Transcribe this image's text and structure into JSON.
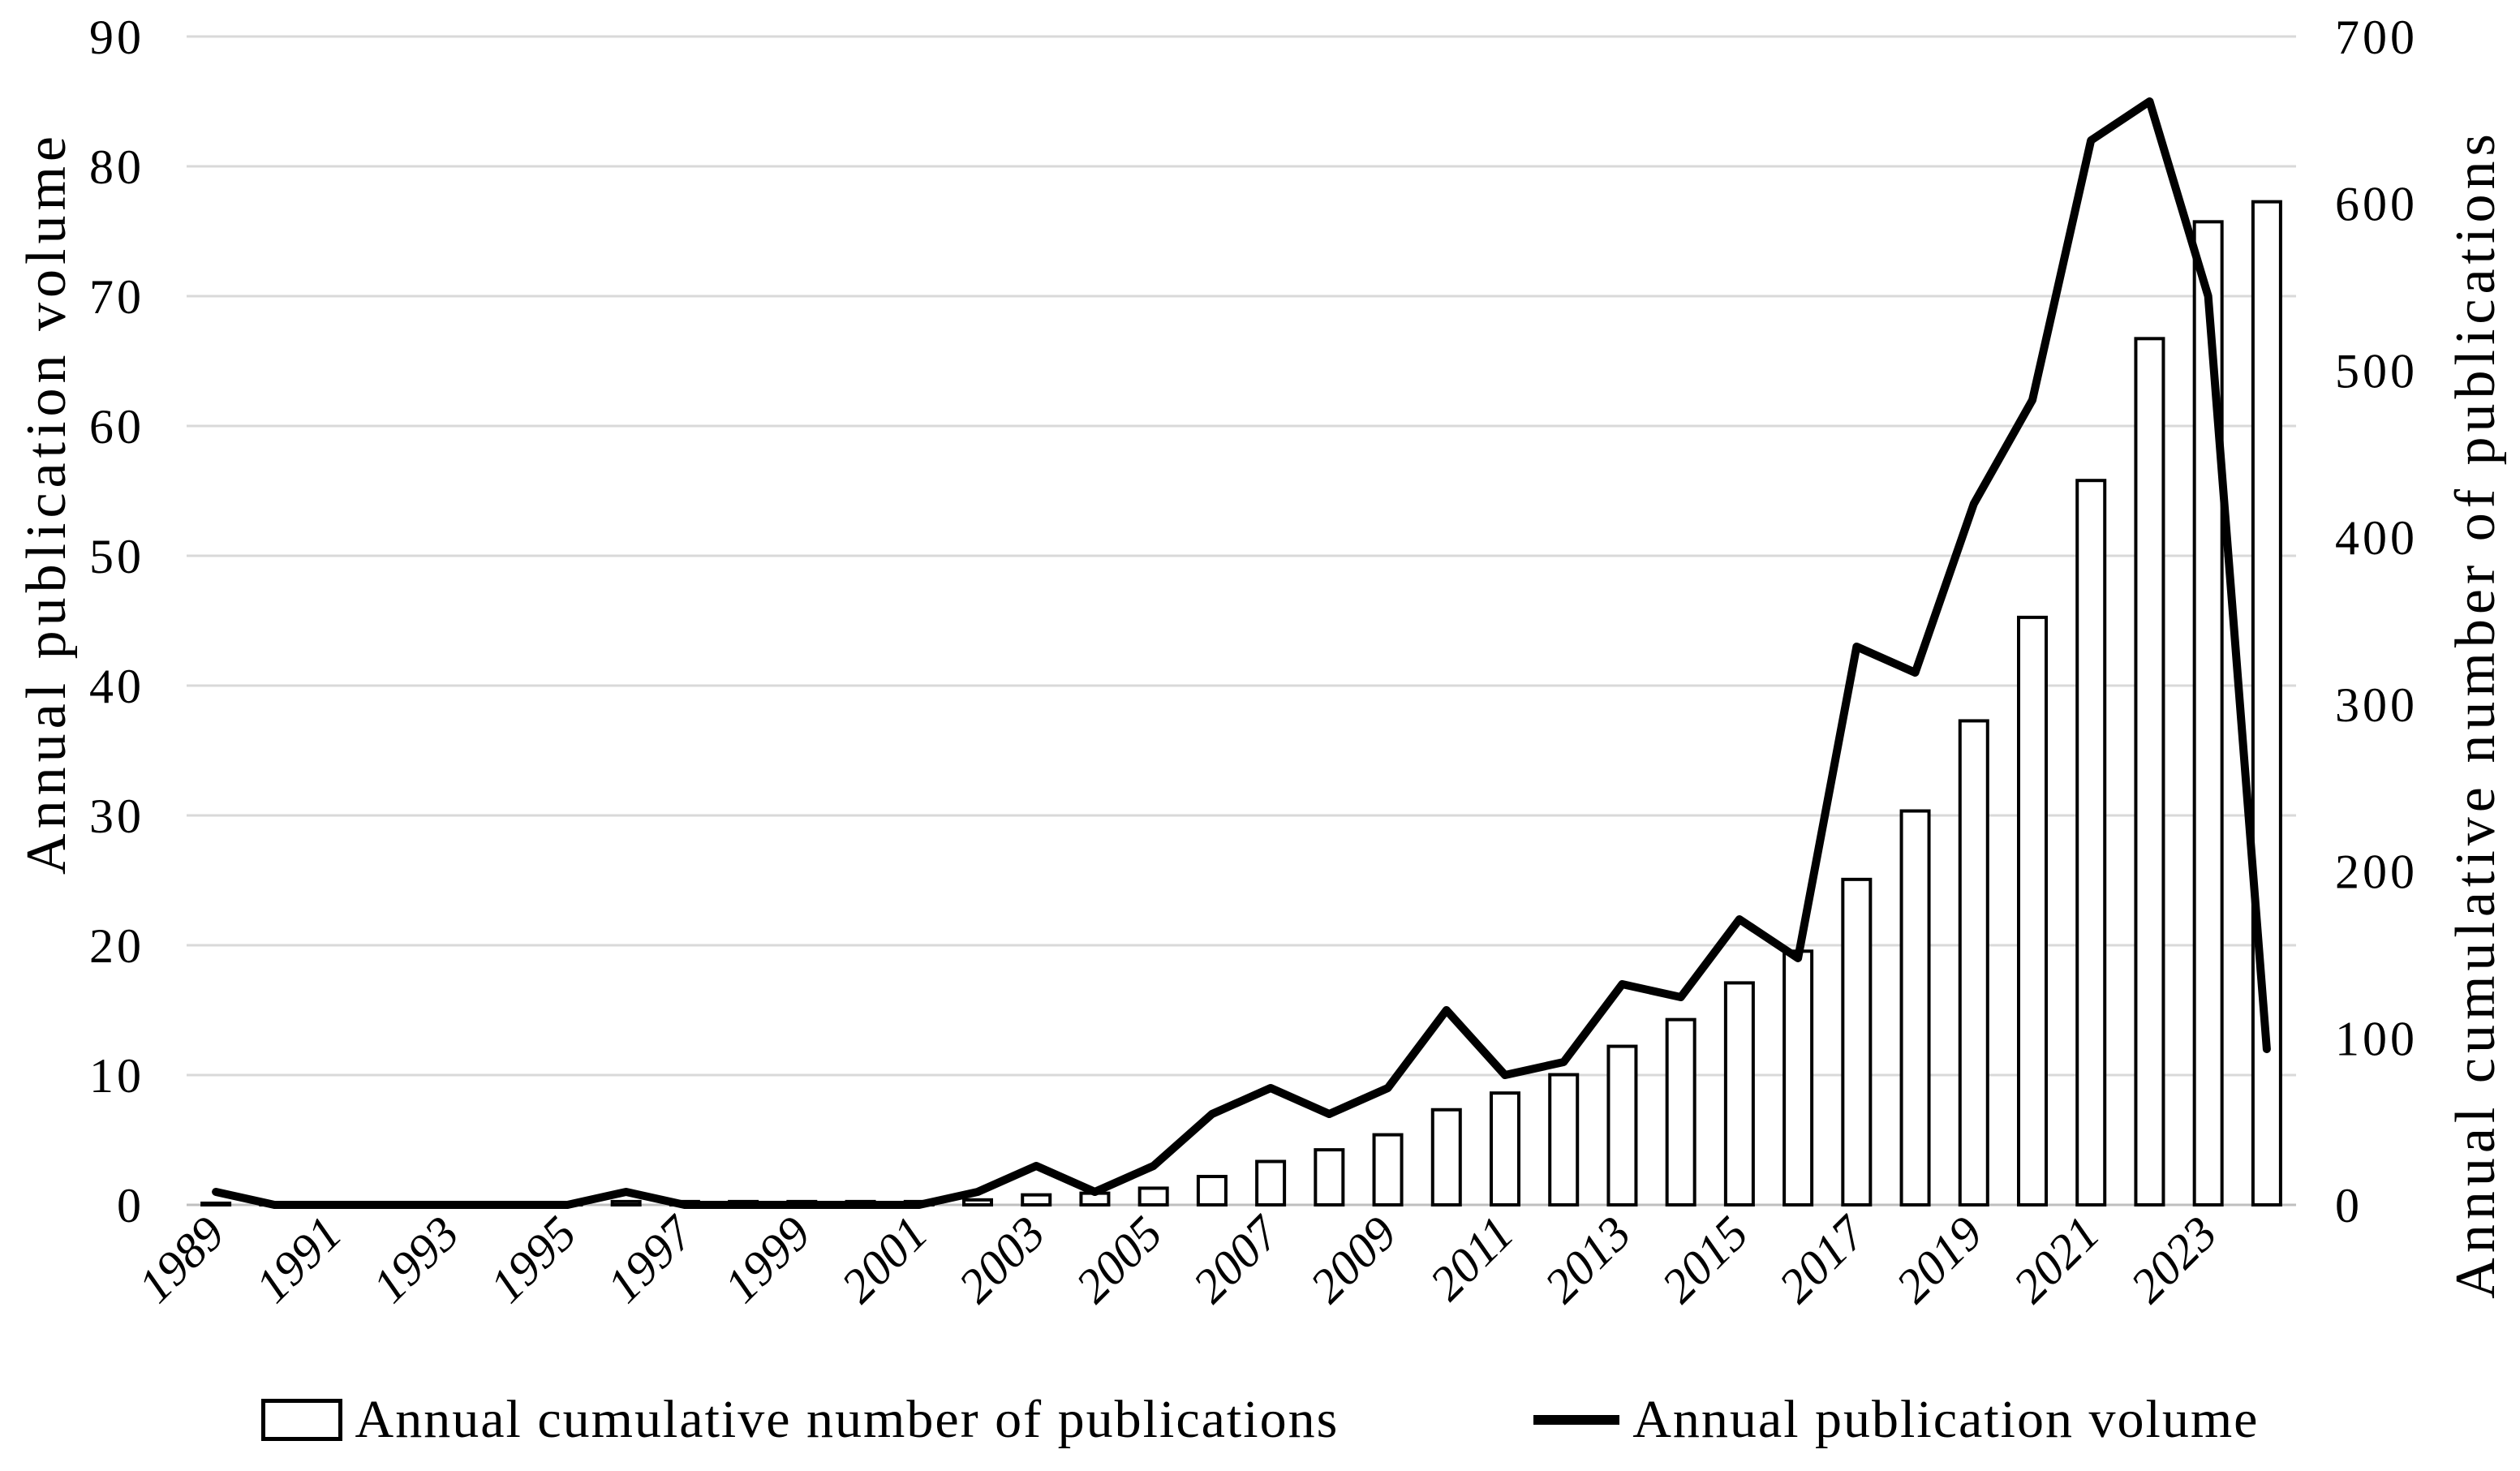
{
  "chart_data": {
    "type": "combo-bar-line",
    "x": [
      1989,
      1990,
      1991,
      1992,
      1993,
      1994,
      1995,
      1996,
      1997,
      1998,
      1999,
      2000,
      2001,
      2002,
      2003,
      2004,
      2005,
      2006,
      2007,
      2008,
      2009,
      2010,
      2011,
      2012,
      2013,
      2014,
      2015,
      2016,
      2017,
      2018,
      2019,
      2020,
      2021,
      2022,
      2023,
      2024
    ],
    "x_tick_labels": [
      "1989",
      "1991",
      "1993",
      "1995",
      "1997",
      "1999",
      "2001",
      "2003",
      "2005",
      "2007",
      "2009",
      "2011",
      "2013",
      "2015",
      "2017",
      "2019",
      "2021",
      "2023"
    ],
    "series": [
      {
        "name": "Annual cumulative number of publications",
        "type": "bar",
        "axis": "right",
        "values": [
          1,
          1,
          1,
          1,
          1,
          1,
          1,
          2,
          2,
          2,
          2,
          2,
          2,
          3,
          6,
          7,
          10,
          17,
          26,
          33,
          42,
          57,
          67,
          78,
          95,
          111,
          133,
          152,
          195,
          236,
          290,
          352,
          434,
          519,
          589,
          601
        ]
      },
      {
        "name": "Annual publication volume",
        "type": "line",
        "axis": "left",
        "values": [
          1,
          0,
          0,
          0,
          0,
          0,
          0,
          1,
          0,
          0,
          0,
          0,
          0,
          1,
          3,
          1,
          3,
          7,
          9,
          7,
          9,
          15,
          10,
          11,
          17,
          16,
          22,
          19,
          43,
          41,
          54,
          62,
          82,
          85,
          70,
          12
        ]
      }
    ],
    "left_axis": {
      "title": "Annual publication volume",
      "min": 0,
      "max": 90,
      "step": 10
    },
    "right_axis": {
      "title": "Annual cumulative number of publications",
      "min": 0,
      "max": 700,
      "step": 100
    },
    "legend": {
      "position": "bottom",
      "entries": [
        "Annual cumulative number of publications",
        "Annual publication volume"
      ]
    },
    "grid": true
  },
  "colors": {
    "background": "#ffffff",
    "bar_fill": "#ffffff",
    "bar_stroke": "#000000",
    "line": "#000000",
    "gridline": "#d9d9d9",
    "axis_line": "#bfbfbf",
    "text": "#000000"
  }
}
